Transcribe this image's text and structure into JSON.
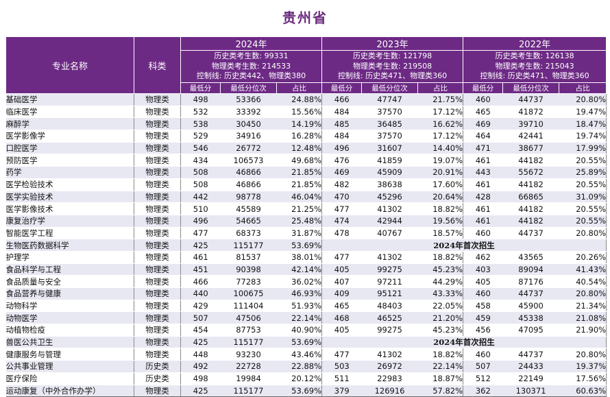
{
  "title": "贵州省",
  "headers": {
    "major": "专业名称",
    "category": "科类",
    "years": [
      {
        "year": "2024年",
        "hist": "历史类考生数: 99331",
        "phys": "物理类考生数: 214533",
        "ctrl": "控制线: 历史类442、物理类380"
      },
      {
        "year": "2023年",
        "hist": "历史类考生数: 121798",
        "phys": "物理类考生数: 219508",
        "ctrl": "控制线: 历史类471、物理类360"
      },
      {
        "year": "2022年",
        "hist": "历史类考生数: 126138",
        "phys": "物理类考生数: 215043",
        "ctrl": "控制线: 历史类471、物理类360"
      }
    ],
    "sub": [
      "最低分",
      "最低分位次",
      "占比"
    ]
  },
  "rows": [
    {
      "name": "基础医学",
      "cat": "物理类",
      "y2024": [
        "498",
        "53366",
        "24.88%"
      ],
      "y2023": [
        "466",
        "47747",
        "21.75%"
      ],
      "y2022": [
        "460",
        "44737",
        "20.80%"
      ]
    },
    {
      "name": "临床医学",
      "cat": "物理类",
      "y2024": [
        "532",
        "33392",
        "15.56%"
      ],
      "y2023": [
        "484",
        "37570",
        "17.12%"
      ],
      "y2022": [
        "465",
        "41872",
        "19.47%"
      ]
    },
    {
      "name": "麻醉学",
      "cat": "物理类",
      "y2024": [
        "538",
        "30450",
        "14.19%"
      ],
      "y2023": [
        "485",
        "36485",
        "16.62%"
      ],
      "y2022": [
        "469",
        "39710",
        "18.47%"
      ]
    },
    {
      "name": "医学影像学",
      "cat": "物理类",
      "y2024": [
        "529",
        "34916",
        "16.28%"
      ],
      "y2023": [
        "484",
        "37570",
        "17.12%"
      ],
      "y2022": [
        "464",
        "42441",
        "19.74%"
      ]
    },
    {
      "name": "口腔医学",
      "cat": "物理类",
      "y2024": [
        "546",
        "26772",
        "12.48%"
      ],
      "y2023": [
        "496",
        "31607",
        "14.40%"
      ],
      "y2022": [
        "471",
        "38677",
        "17.99%"
      ]
    },
    {
      "name": "预防医学",
      "cat": "物理类",
      "y2024": [
        "434",
        "106573",
        "49.68%"
      ],
      "y2023": [
        "476",
        "41859",
        "19.07%"
      ],
      "y2022": [
        "461",
        "44182",
        "20.55%"
      ]
    },
    {
      "name": "药学",
      "cat": "物理类",
      "y2024": [
        "508",
        "46866",
        "21.85%"
      ],
      "y2023": [
        "469",
        "45909",
        "20.91%"
      ],
      "y2022": [
        "443",
        "55672",
        "25.89%"
      ]
    },
    {
      "name": "医学检验技术",
      "cat": "物理类",
      "y2024": [
        "508",
        "46866",
        "21.85%"
      ],
      "y2023": [
        "482",
        "38638",
        "17.60%"
      ],
      "y2022": [
        "461",
        "44182",
        "20.55%"
      ]
    },
    {
      "name": "医学实验技术",
      "cat": "物理类",
      "y2024": [
        "442",
        "98778",
        "46.04%"
      ],
      "y2023": [
        "470",
        "45296",
        "20.64%"
      ],
      "y2022": [
        "428",
        "66865",
        "31.09%"
      ]
    },
    {
      "name": "医学影像技术",
      "cat": "物理类",
      "y2024": [
        "510",
        "45589",
        "21.25%"
      ],
      "y2023": [
        "477",
        "41302",
        "18.82%"
      ],
      "y2022": [
        "461",
        "44182",
        "20.55%"
      ]
    },
    {
      "name": "康复治疗学",
      "cat": "物理类",
      "y2024": [
        "496",
        "54665",
        "25.48%"
      ],
      "y2023": [
        "474",
        "42944",
        "19.56%"
      ],
      "y2022": [
        "461",
        "44182",
        "20.55%"
      ]
    },
    {
      "name": "智能医学工程",
      "cat": "物理类",
      "y2024": [
        "477",
        "68373",
        "31.87%"
      ],
      "y2023": [
        "478",
        "40767",
        "18.57%"
      ],
      "y2022": [
        "460",
        "44737",
        "20.80%"
      ]
    },
    {
      "name": "生物医药数据科学",
      "cat": "物理类",
      "y2024": [
        "425",
        "115177",
        "53.69%"
      ],
      "note": "2024年首次招生"
    },
    {
      "name": "护理学",
      "cat": "物理类",
      "y2024": [
        "461",
        "81537",
        "38.01%"
      ],
      "y2023": [
        "477",
        "41302",
        "18.82%"
      ],
      "y2022": [
        "462",
        "43565",
        "20.26%"
      ]
    },
    {
      "name": "食品科学与工程",
      "cat": "物理类",
      "y2024": [
        "451",
        "90398",
        "42.14%"
      ],
      "y2023": [
        "405",
        "99275",
        "45.23%"
      ],
      "y2022": [
        "403",
        "89094",
        "41.43%"
      ]
    },
    {
      "name": "食品质量与安全",
      "cat": "物理类",
      "y2024": [
        "466",
        "77283",
        "36.02%"
      ],
      "y2023": [
        "407",
        "97211",
        "44.29%"
      ],
      "y2022": [
        "405",
        "87176",
        "40.54%"
      ]
    },
    {
      "name": "食品营养与健康",
      "cat": "物理类",
      "y2024": [
        "440",
        "100675",
        "46.93%"
      ],
      "y2023": [
        "409",
        "95121",
        "43.33%"
      ],
      "y2022": [
        "460",
        "44737",
        "20.80%"
      ]
    },
    {
      "name": "动物科学",
      "cat": "物理类",
      "y2024": [
        "429",
        "111404",
        "51.93%"
      ],
      "y2023": [
        "465",
        "48403",
        "22.05%"
      ],
      "y2022": [
        "458",
        "45900",
        "21.34%"
      ]
    },
    {
      "name": "动物医学",
      "cat": "物理类",
      "y2024": [
        "507",
        "47506",
        "22.14%"
      ],
      "y2023": [
        "468",
        "46525",
        "21.20%"
      ],
      "y2022": [
        "459",
        "45338",
        "21.08%"
      ]
    },
    {
      "name": "动植物检疫",
      "cat": "物理类",
      "y2024": [
        "454",
        "87753",
        "40.90%"
      ],
      "y2023": [
        "405",
        "99275",
        "45.23%"
      ],
      "y2022": [
        "456",
        "47095",
        "21.90%"
      ]
    },
    {
      "name": "兽医公共卫生",
      "cat": "物理类",
      "y2024": [
        "425",
        "115177",
        "53.69%"
      ],
      "note": "2024年首次招生"
    },
    {
      "name": "健康服务与管理",
      "cat": "物理类",
      "y2024": [
        "448",
        "93230",
        "43.46%"
      ],
      "y2023": [
        "477",
        "41302",
        "18.82%"
      ],
      "y2022": [
        "460",
        "44737",
        "20.80%"
      ]
    },
    {
      "name": "公共事业管理",
      "cat": "历史类",
      "y2024": [
        "492",
        "22728",
        "22.88%"
      ],
      "y2023": [
        "503",
        "26972",
        "22.14%"
      ],
      "y2022": [
        "507",
        "24433",
        "19.37%"
      ]
    },
    {
      "name": "医疗保险",
      "cat": "历史类",
      "y2024": [
        "498",
        "19984",
        "20.12%"
      ],
      "y2023": [
        "511",
        "22983",
        "18.87%"
      ],
      "y2022": [
        "512",
        "22149",
        "17.56%"
      ]
    },
    {
      "name": "运动康复（中外合作办学）",
      "cat": "物理类",
      "y2024": [
        "425",
        "115177",
        "53.69%"
      ],
      "y2023": [
        "379",
        "126916",
        "57.82%"
      ],
      "y2022": [
        "362",
        "130371",
        "60.63%"
      ]
    }
  ]
}
